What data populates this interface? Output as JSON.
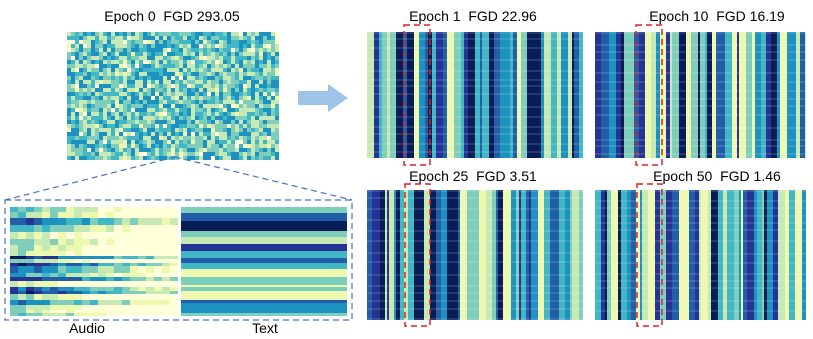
{
  "panels": [
    {
      "title": "Epoch 0  FGD 293.05"
    },
    {
      "title": "Epoch 1  FGD 22.96"
    },
    {
      "title": "Epoch 10  FGD 16.19"
    },
    {
      "title": "Epoch 25  FGD 3.51"
    },
    {
      "title": "Epoch 50  FGD 1.46"
    }
  ],
  "zoom": {
    "labels": [
      "Audio",
      "Text"
    ]
  }
}
